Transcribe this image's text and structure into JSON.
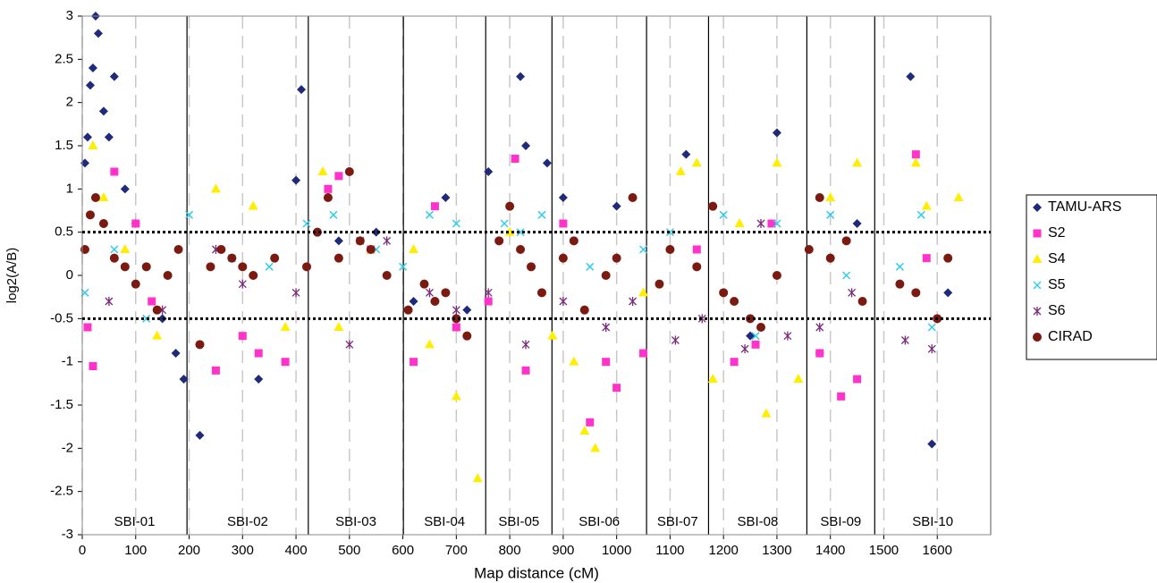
{
  "chart_data": {
    "type": "scatter",
    "x_label": "Map distance (cM)",
    "y_label": "log2(A/B)",
    "xlim": [
      0,
      1700
    ],
    "ylim": [
      -3,
      3
    ],
    "xticks": [
      0,
      100,
      200,
      300,
      400,
      500,
      600,
      700,
      800,
      900,
      1000,
      1100,
      1200,
      1300,
      1400,
      1500,
      1600
    ],
    "yticks": [
      3,
      2.5,
      2,
      1.5,
      1,
      0.5,
      0,
      -0.5,
      -1,
      -1.5,
      -2,
      -2.5,
      -3
    ],
    "x_grid": "dashed",
    "thresholds": [
      0.5,
      -0.5
    ],
    "chromosomes": [
      {
        "label": "SBI-01",
        "start": 0,
        "end": 196
      },
      {
        "label": "SBI-02",
        "start": 196,
        "end": 423
      },
      {
        "label": "SBI-03",
        "start": 423,
        "end": 601
      },
      {
        "label": "SBI-04",
        "start": 601,
        "end": 755
      },
      {
        "label": "SBI-05",
        "start": 755,
        "end": 879
      },
      {
        "label": "SBI-06",
        "start": 879,
        "end": 1056
      },
      {
        "label": "SBI-07",
        "start": 1056,
        "end": 1172
      },
      {
        "label": "SBI-08",
        "start": 1172,
        "end": 1356
      },
      {
        "label": "SBI-09",
        "start": 1356,
        "end": 1483
      },
      {
        "label": "SBI-10",
        "start": 1483,
        "end": 1700
      }
    ],
    "legend": "right",
    "series": [
      {
        "name": "TAMU-ARS",
        "color": "#1f2a7a",
        "marker": "diamond",
        "x": [
          5,
          10,
          15,
          20,
          25,
          30,
          40,
          50,
          60,
          80,
          100,
          150,
          175,
          190,
          220,
          330,
          400,
          410,
          480,
          550,
          620,
          680,
          720,
          760,
          820,
          830,
          870,
          900,
          1000,
          1100,
          1130,
          1250,
          1300,
          1380,
          1450,
          1550,
          1590,
          1620
        ],
        "y": [
          1.3,
          1.6,
          2.2,
          2.4,
          3.0,
          2.8,
          1.9,
          1.6,
          2.3,
          1.0,
          0.6,
          -0.5,
          -0.9,
          -1.2,
          -1.85,
          -1.2,
          1.1,
          2.15,
          0.4,
          0.5,
          -0.3,
          0.9,
          -0.4,
          1.2,
          2.3,
          1.5,
          1.3,
          0.9,
          0.8,
          0.3,
          1.4,
          -0.7,
          1.65,
          -0.9,
          0.6,
          2.3,
          -1.95,
          -0.2
        ]
      },
      {
        "name": "S2",
        "color": "#ff33cc",
        "marker": "square",
        "x": [
          10,
          20,
          60,
          100,
          130,
          250,
          300,
          330,
          380,
          460,
          480,
          540,
          620,
          660,
          700,
          760,
          810,
          830,
          900,
          950,
          980,
          1000,
          1050,
          1150,
          1220,
          1260,
          1290,
          1380,
          1420,
          1450,
          1560,
          1580
        ],
        "y": [
          -0.6,
          -1.05,
          1.2,
          0.6,
          -0.3,
          -1.1,
          -0.7,
          -0.9,
          -1.0,
          1.0,
          1.15,
          0.3,
          -1.0,
          0.8,
          -0.6,
          -0.3,
          1.35,
          -1.1,
          0.6,
          -1.7,
          -1.0,
          -1.3,
          -0.9,
          0.3,
          -1.0,
          -0.8,
          0.6,
          -0.9,
          -1.4,
          -1.2,
          1.4,
          0.2
        ]
      },
      {
        "name": "S4",
        "color": "#ffee00",
        "marker": "triangle",
        "x": [
          20,
          40,
          80,
          140,
          250,
          320,
          380,
          450,
          480,
          540,
          620,
          650,
          700,
          740,
          800,
          880,
          920,
          940,
          960,
          1050,
          1120,
          1150,
          1180,
          1230,
          1280,
          1300,
          1340,
          1400,
          1450,
          1560,
          1580,
          1640
        ],
        "y": [
          1.5,
          0.9,
          0.3,
          -0.7,
          1.0,
          0.8,
          -0.6,
          1.2,
          -0.6,
          0.3,
          0.3,
          -0.8,
          -1.4,
          -2.35,
          0.5,
          -0.7,
          -1.0,
          -1.8,
          -2.0,
          -0.2,
          1.2,
          1.3,
          -1.2,
          0.6,
          -1.6,
          1.3,
          -1.2,
          0.9,
          1.3,
          1.3,
          0.8,
          0.9
        ]
      },
      {
        "name": "S5",
        "color": "#33ccee",
        "marker": "x",
        "x": [
          5,
          60,
          120,
          200,
          280,
          350,
          420,
          470,
          550,
          600,
          650,
          700,
          790,
          820,
          860,
          950,
          1050,
          1100,
          1200,
          1260,
          1300,
          1400,
          1430,
          1530,
          1570,
          1590
        ],
        "y": [
          -0.2,
          0.3,
          -0.5,
          0.7,
          0.2,
          0.1,
          0.6,
          0.7,
          0.3,
          0.1,
          0.7,
          0.6,
          0.6,
          0.5,
          0.7,
          0.1,
          0.3,
          0.5,
          0.7,
          -0.7,
          0.6,
          0.7,
          0.0,
          0.1,
          0.7,
          -0.6
        ]
      },
      {
        "name": "S6",
        "color": "#7a2a7a",
        "marker": "star",
        "x": [
          50,
          150,
          250,
          300,
          400,
          500,
          520,
          570,
          650,
          700,
          760,
          830,
          900,
          980,
          1030,
          1110,
          1160,
          1240,
          1270,
          1320,
          1380,
          1440,
          1540,
          1590
        ],
        "y": [
          -0.3,
          -0.4,
          0.3,
          -0.1,
          -0.2,
          -0.8,
          0.4,
          0.4,
          -0.2,
          -0.4,
          -0.2,
          -0.8,
          -0.3,
          -0.6,
          -0.3,
          -0.75,
          -0.5,
          -0.85,
          0.6,
          -0.7,
          -0.6,
          -0.2,
          -0.75,
          -0.85
        ]
      },
      {
        "name": "CIRAD",
        "color": "#7a1a10",
        "marker": "circle",
        "x": [
          5,
          15,
          25,
          40,
          60,
          80,
          100,
          120,
          140,
          160,
          180,
          220,
          240,
          260,
          280,
          300,
          320,
          360,
          420,
          440,
          460,
          480,
          500,
          520,
          540,
          570,
          610,
          640,
          660,
          680,
          700,
          720,
          780,
          800,
          820,
          840,
          860,
          900,
          920,
          940,
          980,
          1000,
          1030,
          1080,
          1100,
          1150,
          1180,
          1200,
          1220,
          1250,
          1270,
          1300,
          1360,
          1380,
          1400,
          1430,
          1460,
          1530,
          1560,
          1600,
          1620
        ],
        "y": [
          0.3,
          0.7,
          0.9,
          0.6,
          0.2,
          0.1,
          -0.1,
          0.1,
          -0.4,
          0.0,
          0.3,
          -0.8,
          0.1,
          0.3,
          0.2,
          0.1,
          0.0,
          0.2,
          0.1,
          0.5,
          0.9,
          0.2,
          1.2,
          0.4,
          0.3,
          0.0,
          -0.4,
          -0.1,
          -0.3,
          -0.2,
          -0.5,
          -0.7,
          0.4,
          0.8,
          0.3,
          0.1,
          -0.2,
          0.2,
          0.4,
          -0.4,
          0.0,
          0.2,
          0.9,
          -0.1,
          0.3,
          0.1,
          0.8,
          -0.2,
          -0.3,
          -0.5,
          -0.6,
          0.0,
          0.3,
          0.9,
          0.2,
          0.4,
          -0.3,
          -0.1,
          -0.2,
          -0.5,
          0.2
        ]
      }
    ]
  }
}
